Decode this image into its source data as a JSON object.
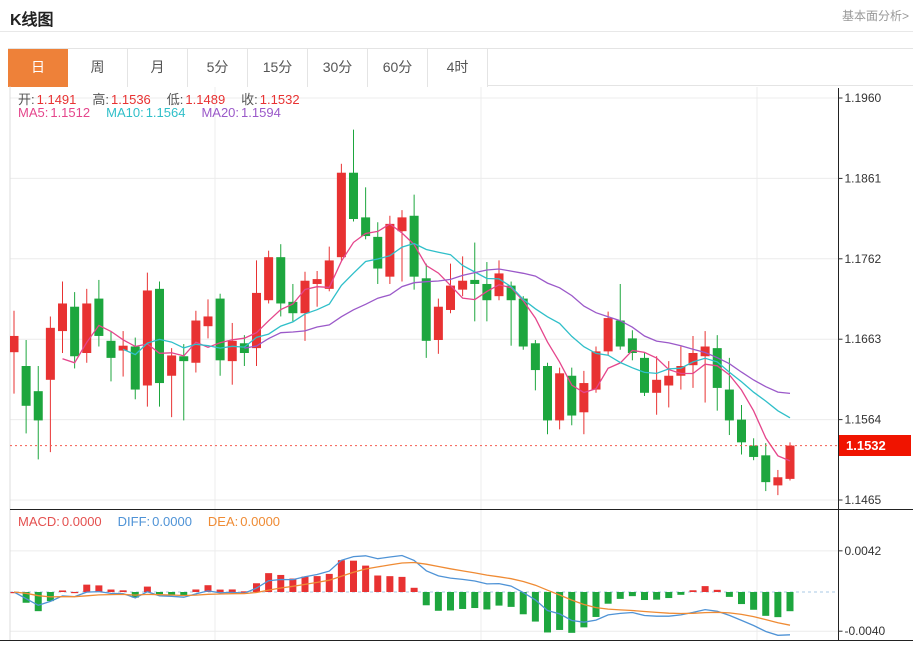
{
  "header": {
    "title": "K线图",
    "link": "基本面分析>"
  },
  "tabs": {
    "active_index": 0,
    "items": [
      "日",
      "周",
      "月",
      "5分",
      "15分",
      "30分",
      "60分",
      "4时"
    ]
  },
  "legend_ohlc": [
    {
      "label": "开:",
      "value": "1.1491"
    },
    {
      "label": "高:",
      "value": "1.1536"
    },
    {
      "label": "低:",
      "value": "1.1489"
    },
    {
      "label": "收:",
      "value": "1.1532"
    }
  ],
  "legend_ma": [
    {
      "label": "MA5:",
      "value": "1.1512",
      "color": "#e5468c"
    },
    {
      "label": "MA10:",
      "value": "1.1564",
      "color": "#2fbfc9"
    },
    {
      "label": "MA20:",
      "value": "1.1594",
      "color": "#9b59c9"
    }
  ],
  "legend_macd": [
    {
      "label": "MACD:",
      "value": "0.0000",
      "color": "#e4504f"
    },
    {
      "label": "DIFF:",
      "value": "0.0000",
      "color": "#4f93d6"
    },
    {
      "label": "DEA:",
      "value": "0.0000",
      "color": "#ef8b34"
    }
  ],
  "price_tag": "1.1532",
  "chart_data": {
    "type": "candlestick",
    "title": "K线图 (daily)",
    "y_ticks_main": [
      1.196,
      1.1861,
      1.1762,
      1.1663,
      1.1564,
      1.1465
    ],
    "y_ticks_macd": [
      0.0042,
      -0.004
    ],
    "current_price": 1.1532,
    "grid": true,
    "ma_periods": [
      5,
      10,
      20
    ],
    "colors": {
      "up": "#e83232",
      "down": "#1da63e",
      "ma5": "#e5468c",
      "ma10": "#2fbfc9",
      "ma20": "#9b59c9",
      "diff": "#4f93d6",
      "dea": "#ef8b34",
      "price_line": "#f55b4e",
      "tag_bg": "#f01400",
      "grid": "#ececec",
      "axis": "#222222",
      "zero_dash": "#a9c9e6"
    },
    "candles_format": [
      "open",
      "high",
      "low",
      "close"
    ],
    "candles": [
      [
        1.1647,
        1.1698,
        1.1596,
        1.1667
      ],
      [
        1.163,
        1.1662,
        1.1547,
        1.1581
      ],
      [
        1.1599,
        1.163,
        1.1515,
        1.1563
      ],
      [
        1.1613,
        1.1691,
        1.1524,
        1.1677
      ],
      [
        1.1673,
        1.1734,
        1.1646,
        1.1707
      ],
      [
        1.1703,
        1.1721,
        1.1627,
        1.1642
      ],
      [
        1.1646,
        1.1725,
        1.1634,
        1.1707
      ],
      [
        1.1713,
        1.1736,
        1.1654,
        1.1667
      ],
      [
        1.1661,
        1.1673,
        1.1611,
        1.164
      ],
      [
        1.1649,
        1.1673,
        1.1617,
        1.1655
      ],
      [
        1.1654,
        1.1665,
        1.1589,
        1.1601
      ],
      [
        1.1606,
        1.1745,
        1.158,
        1.1723
      ],
      [
        1.1725,
        1.1734,
        1.158,
        1.1609
      ],
      [
        1.1618,
        1.1652,
        1.1567,
        1.1643
      ],
      [
        1.1642,
        1.1657,
        1.1563,
        1.1636
      ],
      [
        1.1634,
        1.1698,
        1.1622,
        1.1686
      ],
      [
        1.1679,
        1.1712,
        1.1664,
        1.1691
      ],
      [
        1.1713,
        1.1719,
        1.1618,
        1.1637
      ],
      [
        1.1636,
        1.1683,
        1.1607,
        1.1661
      ],
      [
        1.1658,
        1.1668,
        1.163,
        1.1646
      ],
      [
        1.1652,
        1.176,
        1.163,
        1.172
      ],
      [
        1.1711,
        1.1772,
        1.1707,
        1.1764
      ],
      [
        1.1764,
        1.178,
        1.1691,
        1.1707
      ],
      [
        1.1709,
        1.1731,
        1.1685,
        1.1695
      ],
      [
        1.1695,
        1.1746,
        1.1661,
        1.1735
      ],
      [
        1.1731,
        1.1747,
        1.1703,
        1.1737
      ],
      [
        1.1725,
        1.1777,
        1.1722,
        1.176
      ],
      [
        1.1764,
        1.1879,
        1.176,
        1.1868
      ],
      [
        1.1868,
        1.1921,
        1.1808,
        1.1811
      ],
      [
        1.1813,
        1.185,
        1.1786,
        1.179
      ],
      [
        1.1789,
        1.1807,
        1.1731,
        1.175
      ],
      [
        1.174,
        1.1815,
        1.1731,
        1.1805
      ],
      [
        1.1796,
        1.1822,
        1.1734,
        1.1813
      ],
      [
        1.1815,
        1.1841,
        1.1724,
        1.174
      ],
      [
        1.1738,
        1.1756,
        1.164,
        1.1661
      ],
      [
        1.1662,
        1.1713,
        1.1645,
        1.1703
      ],
      [
        1.1699,
        1.1756,
        1.1695,
        1.1729
      ],
      [
        1.1724,
        1.1765,
        1.1716,
        1.1735
      ],
      [
        1.1736,
        1.1782,
        1.1685,
        1.1731
      ],
      [
        1.1731,
        1.1758,
        1.1685,
        1.1711
      ],
      [
        1.1716,
        1.176,
        1.1711,
        1.1744
      ],
      [
        1.1729,
        1.1734,
        1.1655,
        1.1711
      ],
      [
        1.1713,
        1.1716,
        1.165,
        1.1654
      ],
      [
        1.1658,
        1.1662,
        1.16,
        1.1625
      ],
      [
        1.163,
        1.1634,
        1.1546,
        1.1563
      ],
      [
        1.1563,
        1.1628,
        1.1552,
        1.1621
      ],
      [
        1.1618,
        1.1628,
        1.1557,
        1.1569
      ],
      [
        1.1573,
        1.1624,
        1.1546,
        1.1609
      ],
      [
        1.1601,
        1.1654,
        1.1597,
        1.1648
      ],
      [
        1.1648,
        1.1697,
        1.1643,
        1.1689
      ],
      [
        1.1686,
        1.1731,
        1.165,
        1.1654
      ],
      [
        1.1664,
        1.1674,
        1.1637,
        1.1646
      ],
      [
        1.164,
        1.1647,
        1.1593,
        1.1597
      ],
      [
        1.1597,
        1.1642,
        1.157,
        1.1613
      ],
      [
        1.1606,
        1.1636,
        1.1579,
        1.1618
      ],
      [
        1.1618,
        1.1654,
        1.1601,
        1.163
      ],
      [
        1.1631,
        1.1667,
        1.1603,
        1.1646
      ],
      [
        1.1642,
        1.1673,
        1.1585,
        1.1654
      ],
      [
        1.1652,
        1.1668,
        1.1575,
        1.1603
      ],
      [
        1.1601,
        1.164,
        1.1545,
        1.1563
      ],
      [
        1.1564,
        1.1582,
        1.1521,
        1.1536
      ],
      [
        1.1532,
        1.1541,
        1.1514,
        1.1518
      ],
      [
        1.152,
        1.1535,
        1.1476,
        1.1487
      ],
      [
        1.1483,
        1.1502,
        1.1471,
        1.1493
      ],
      [
        1.1491,
        1.1536,
        1.1489,
        1.1532
      ]
    ]
  }
}
